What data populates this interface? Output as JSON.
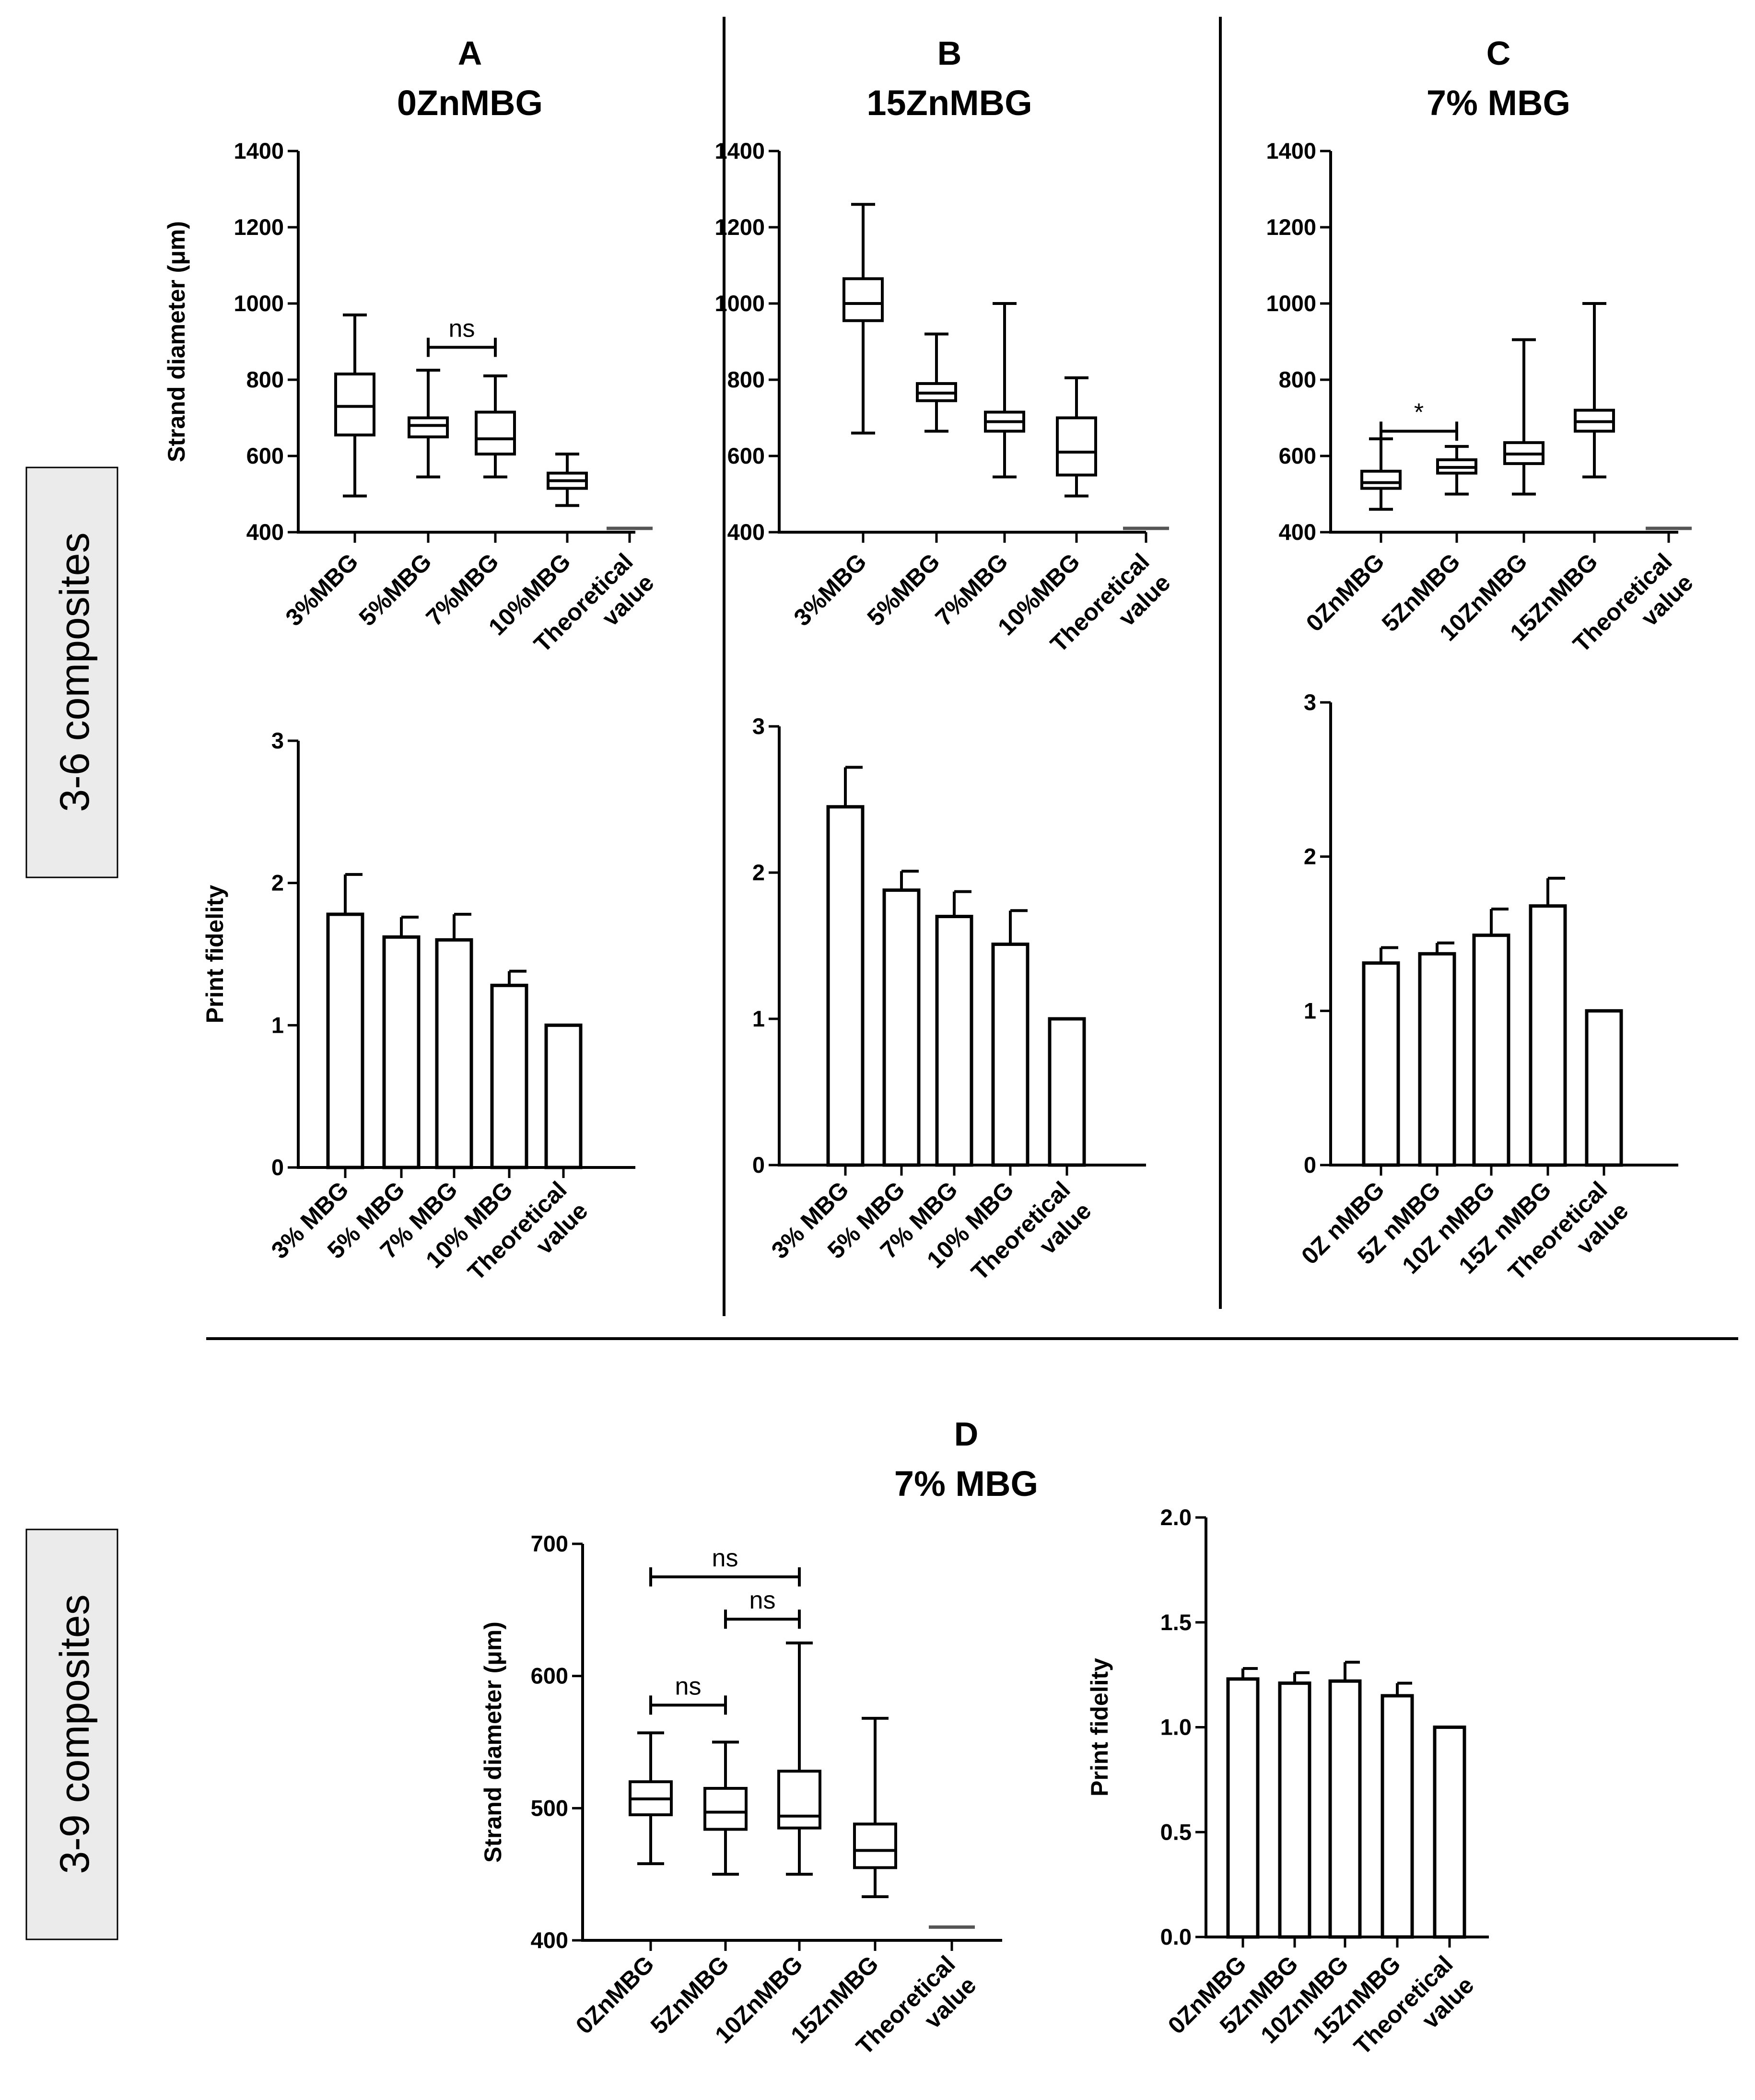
{
  "side_labels": {
    "top": "3-6 composites",
    "bottom": "3-9 composites"
  },
  "panels": {
    "A": {
      "letter": "A",
      "subtitle": "0ZnMBG"
    },
    "B": {
      "letter": "B",
      "subtitle": "15ZnMBG"
    },
    "C": {
      "letter": "C",
      "subtitle": "7% MBG"
    },
    "D": {
      "letter": "D",
      "subtitle": "7% MBG"
    }
  },
  "chart_data": [
    {
      "id": "A-box",
      "type": "box",
      "ylabel": "Strand diameter (μm)",
      "ylim": [
        400,
        1400
      ],
      "yticks": [
        400,
        600,
        800,
        1000,
        1200,
        1400
      ],
      "categories": [
        [
          "3%MBG"
        ],
        [
          "5%MBG"
        ],
        [
          "7%MBG"
        ],
        [
          "10%MBG"
        ],
        [
          "Theoretical",
          "value"
        ]
      ],
      "boxes": [
        {
          "min": 495,
          "q1": 655,
          "median": 730,
          "q3": 815,
          "max": 970
        },
        {
          "min": 545,
          "q1": 650,
          "median": 680,
          "q3": 700,
          "max": 825
        },
        {
          "min": 545,
          "q1": 605,
          "median": 645,
          "q3": 715,
          "max": 810
        },
        {
          "min": 470,
          "q1": 515,
          "median": 535,
          "q3": 555,
          "max": 605
        },
        {
          "theoretical": 410
        }
      ],
      "annotations": [
        {
          "from": 1,
          "to": 2,
          "label": "ns",
          "y": 885
        }
      ]
    },
    {
      "id": "B-box",
      "type": "box",
      "ylabel": "",
      "ylim": [
        400,
        1400
      ],
      "yticks": [
        400,
        600,
        800,
        1000,
        1200,
        1400
      ],
      "categories": [
        [
          "3%MBG"
        ],
        [
          "5%MBG"
        ],
        [
          "7%MBG"
        ],
        [
          "10%MBG"
        ],
        [
          "Theoretical",
          "value"
        ]
      ],
      "boxes": [
        {
          "min": 660,
          "q1": 955,
          "median": 1000,
          "q3": 1065,
          "max": 1260
        },
        {
          "min": 665,
          "q1": 745,
          "median": 765,
          "q3": 790,
          "max": 920
        },
        {
          "min": 545,
          "q1": 665,
          "median": 690,
          "q3": 715,
          "max": 1000
        },
        {
          "min": 495,
          "q1": 550,
          "median": 610,
          "q3": 700,
          "max": 805
        },
        {
          "theoretical": 410
        }
      ],
      "annotations": []
    },
    {
      "id": "C-box",
      "type": "box",
      "ylabel": "",
      "ylim": [
        400,
        1400
      ],
      "yticks": [
        400,
        600,
        800,
        1000,
        1200,
        1400
      ],
      "categories": [
        [
          "0ZnMBG"
        ],
        [
          "5ZnMBG"
        ],
        [
          "10ZnMBG"
        ],
        [
          "15ZnMBG"
        ],
        [
          "Theoretical",
          "value"
        ]
      ],
      "boxes": [
        {
          "min": 460,
          "q1": 515,
          "median": 530,
          "q3": 560,
          "max": 645
        },
        {
          "min": 500,
          "q1": 555,
          "median": 570,
          "q3": 590,
          "max": 625
        },
        {
          "min": 500,
          "q1": 580,
          "median": 605,
          "q3": 635,
          "max": 905
        },
        {
          "min": 545,
          "q1": 665,
          "median": 690,
          "q3": 720,
          "max": 1000
        },
        {
          "theoretical": 410
        }
      ],
      "annotations": [
        {
          "from": 0,
          "to": 1,
          "label": "*",
          "y": 665
        }
      ]
    },
    {
      "id": "A-bar",
      "type": "bar",
      "ylabel": "Print fidelity",
      "ylim": [
        0,
        3
      ],
      "yticks": [
        0,
        1,
        2,
        3
      ],
      "categories": [
        [
          "3% MBG"
        ],
        [
          "5% MBG"
        ],
        [
          "7% MBG"
        ],
        [
          "10% MBG"
        ],
        [
          "Theoretical",
          "value"
        ]
      ],
      "values": [
        1.78,
        1.62,
        1.6,
        1.28,
        1.0
      ],
      "errors": [
        0.28,
        0.14,
        0.18,
        0.1,
        0
      ]
    },
    {
      "id": "B-bar",
      "type": "bar",
      "ylabel": "",
      "ylim": [
        0,
        3
      ],
      "yticks": [
        0,
        1,
        2,
        3
      ],
      "categories": [
        [
          "3% MBG"
        ],
        [
          "5% MBG"
        ],
        [
          "7% MBG"
        ],
        [
          "10% MBG"
        ],
        [
          "Theoretical",
          "value"
        ]
      ],
      "values": [
        2.45,
        1.88,
        1.7,
        1.51,
        1.0
      ],
      "errors": [
        0.27,
        0.13,
        0.17,
        0.23,
        0
      ]
    },
    {
      "id": "C-bar",
      "type": "bar",
      "ylabel": "",
      "ylim": [
        0,
        3
      ],
      "yticks": [
        0,
        1,
        2,
        3
      ],
      "categories": [
        [
          "0Z nMBG"
        ],
        [
          "5Z nMBG"
        ],
        [
          "10Z nMBG"
        ],
        [
          "15Z nMBG"
        ],
        [
          "Theoretical",
          "value"
        ]
      ],
      "values": [
        1.31,
        1.37,
        1.49,
        1.68,
        1.0
      ],
      "errors": [
        0.1,
        0.07,
        0.17,
        0.18,
        0
      ]
    },
    {
      "id": "D-box",
      "type": "box",
      "ylabel": "Strand diameter (μm)",
      "ylim": [
        400,
        700
      ],
      "yticks": [
        400,
        500,
        600,
        700
      ],
      "categories": [
        [
          "0ZnMBG"
        ],
        [
          "5ZnMBG"
        ],
        [
          "10ZnMBG"
        ],
        [
          "15ZnMBG"
        ],
        [
          "Theoretical",
          "value"
        ]
      ],
      "boxes": [
        {
          "min": 458,
          "q1": 495,
          "median": 507,
          "q3": 520,
          "max": 557
        },
        {
          "min": 450,
          "q1": 484,
          "median": 497,
          "q3": 515,
          "max": 550
        },
        {
          "min": 450,
          "q1": 485,
          "median": 494,
          "q3": 528,
          "max": 625
        },
        {
          "min": 433,
          "q1": 455,
          "median": 468,
          "q3": 488,
          "max": 568
        },
        {
          "theoretical": 410
        }
      ],
      "annotations": [
        {
          "from": 0,
          "to": 2,
          "label": "ns",
          "y": 675
        },
        {
          "from": 1,
          "to": 2,
          "label": "ns",
          "y": 643
        },
        {
          "from": 0,
          "to": 1,
          "label": "ns",
          "y": 578
        }
      ]
    },
    {
      "id": "D-bar",
      "type": "bar",
      "ylabel": "Print fidelity",
      "ylim": [
        0,
        2.0
      ],
      "yticks": [
        "0.0",
        "0.5",
        "1.0",
        "1.5",
        "2.0"
      ],
      "categories": [
        [
          "0ZnMBG"
        ],
        [
          "5ZnMBG"
        ],
        [
          "10ZnMBG"
        ],
        [
          "15ZnMBG"
        ],
        [
          "Theoretical",
          "value"
        ]
      ],
      "values": [
        1.23,
        1.21,
        1.22,
        1.15,
        1.0
      ],
      "errors": [
        0.05,
        0.05,
        0.09,
        0.06,
        0
      ]
    }
  ]
}
